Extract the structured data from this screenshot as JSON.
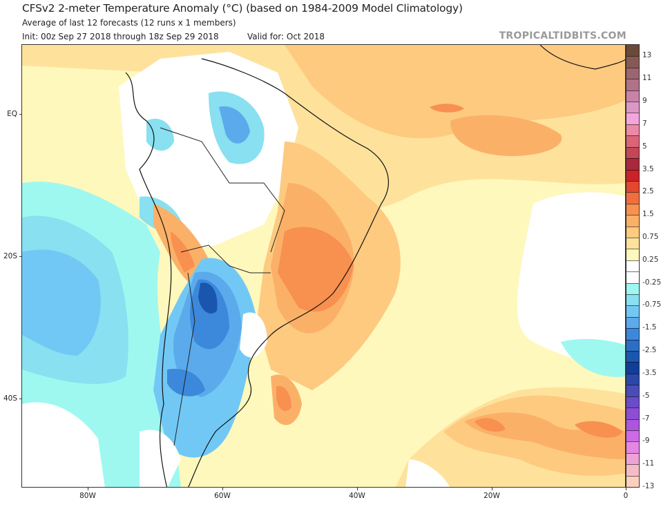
{
  "header": {
    "title": "CFSv2 2-meter Temperature Anomaly (°C) (based on 1984-2009 Model Climatology)",
    "subtitle": "Average of last 12 forecasts (12 runs x 1 members)",
    "init": "Init: 00z Sep 27 2018 through 18z Sep 29 2018",
    "valid": "Valid for: Oct 2018",
    "brand": "TROPICALTIDBITS.COM"
  },
  "axes": {
    "y_ticks": [
      "EQ",
      "20S",
      "40S"
    ],
    "x_ticks": [
      "80W",
      "60W",
      "40W",
      "20W",
      "0"
    ]
  },
  "colorbar": {
    "labels": [
      "13",
      "11",
      "9",
      "7",
      "5",
      "3.5",
      "2.5",
      "1.5",
      "0.75",
      "0.25",
      "-0.25",
      "-0.75",
      "-1.5",
      "-2.5",
      "-3.5",
      "-5",
      "-7",
      "-9",
      "-11",
      "-13"
    ],
    "colors": [
      "#6b4a3a",
      "#855a55",
      "#9c6670",
      "#b07288",
      "#c784a8",
      "#db97c6",
      "#f4a6dc",
      "#ee88a8",
      "#dc6478",
      "#c44658",
      "#a8283c",
      "#cc2128",
      "#e4462e",
      "#f06e3e",
      "#f89050",
      "#fbb068",
      "#fdca80",
      "#fee29c",
      "#fef8bc",
      "#ffffff",
      "#ffffff",
      "#9ef8f0",
      "#88e0f0",
      "#72c8f4",
      "#5aaaec",
      "#3c88da",
      "#2a6ec6",
      "#1a56ae",
      "#103e98",
      "#2a48a8",
      "#4a4cb8",
      "#6a4cc8",
      "#8c4ed4",
      "#ac56e0",
      "#cc6ae8",
      "#e486e4",
      "#eca4d4",
      "#f5bcc8",
      "#fbd0c0"
    ]
  },
  "map": {
    "region": "South America and South Atlantic",
    "palette": {
      "ocean_warm1": "#fef8bc",
      "ocean_warm2": "#fee29c",
      "warm3": "#fdca80",
      "warm4": "#fbb068",
      "warm5": "#f89050",
      "warm6": "#f06e3e",
      "neutral": "#ffffff",
      "cool1": "#9ef8f0",
      "cool2": "#88e0f0",
      "cool3": "#72c8f4",
      "cool4": "#5aaaec",
      "cool5": "#3c88da",
      "cool6": "#2a6ec6",
      "cool7": "#1a56ae",
      "border": "#111111",
      "state_border": "#888888"
    }
  }
}
